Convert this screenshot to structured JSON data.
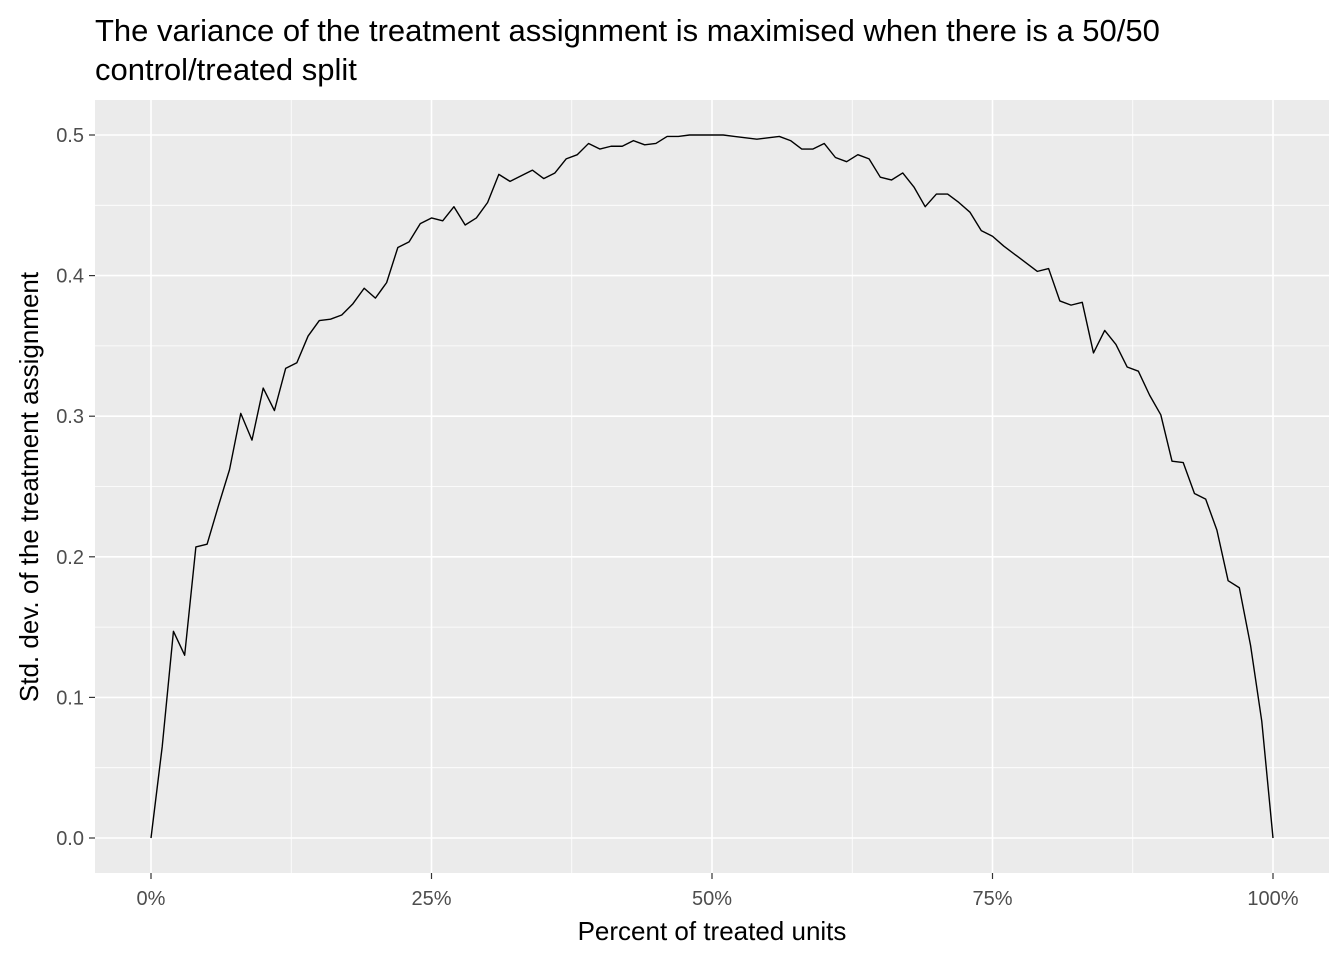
{
  "chart_data": {
    "type": "line",
    "title": "The variance of the treatment assignment is maximised when there is a 50/50",
    "title_line2": "control/treated split",
    "xlabel": "Percent of treated units",
    "ylabel": "Std. dev. of the treatment assignment",
    "xlim": [
      0,
      1
    ],
    "ylim": [
      0,
      0.5
    ],
    "x_ticks": [
      {
        "value": 0,
        "label": "0%"
      },
      {
        "value": 0.25,
        "label": "25%"
      },
      {
        "value": 0.5,
        "label": "50%"
      },
      {
        "value": 0.75,
        "label": "75%"
      },
      {
        "value": 1,
        "label": "100%"
      }
    ],
    "y_ticks": [
      {
        "value": 0.0,
        "label": "0.0"
      },
      {
        "value": 0.1,
        "label": "0.1"
      },
      {
        "value": 0.2,
        "label": "0.2"
      },
      {
        "value": 0.3,
        "label": "0.3"
      },
      {
        "value": 0.4,
        "label": "0.4"
      },
      {
        "value": 0.5,
        "label": "0.5"
      }
    ],
    "grid": true,
    "colors": {
      "panel_background": "#ebebeb",
      "grid_major": "#ffffff",
      "line": "#000000"
    },
    "series": [
      {
        "x": [
          0,
          0.01,
          0.02,
          0.03,
          0.04,
          0.05,
          0.06,
          0.07,
          0.08,
          0.09,
          0.1,
          0.11,
          0.12,
          0.13,
          0.14,
          0.15,
          0.16,
          0.17,
          0.18,
          0.19,
          0.2,
          0.21,
          0.22,
          0.23,
          0.24,
          0.25,
          0.26,
          0.27,
          0.28,
          0.29,
          0.3,
          0.31,
          0.32,
          0.33,
          0.34,
          0.35,
          0.36,
          0.37,
          0.38,
          0.39,
          0.4,
          0.41,
          0.42,
          0.43,
          0.44,
          0.45,
          0.46,
          0.47,
          0.48,
          0.49,
          0.5,
          0.51,
          0.52,
          0.53,
          0.54,
          0.55,
          0.56,
          0.57,
          0.58,
          0.59,
          0.6,
          0.61,
          0.62,
          0.63,
          0.64,
          0.65,
          0.66,
          0.67,
          0.68,
          0.69,
          0.7,
          0.71,
          0.72,
          0.73,
          0.74,
          0.75,
          0.76,
          0.77,
          0.78,
          0.79,
          0.8,
          0.81,
          0.82,
          0.83,
          0.84,
          0.85,
          0.86,
          0.87,
          0.88,
          0.89,
          0.9,
          0.91,
          0.92,
          0.93,
          0.94,
          0.95,
          0.96,
          0.97,
          0.98,
          0.99,
          1.0
        ],
        "y": [
          0,
          0.065,
          0.147,
          0.13,
          0.207,
          0.209,
          0.236,
          0.262,
          0.302,
          0.283,
          0.32,
          0.304,
          0.334,
          0.338,
          0.357,
          0.368,
          0.369,
          0.372,
          0.38,
          0.391,
          0.384,
          0.395,
          0.42,
          0.424,
          0.437,
          0.441,
          0.439,
          0.449,
          0.436,
          0.441,
          0.452,
          0.472,
          0.467,
          0.471,
          0.475,
          0.469,
          0.473,
          0.483,
          0.486,
          0.494,
          0.49,
          0.492,
          0.492,
          0.496,
          0.493,
          0.494,
          0.499,
          0.499,
          0.5,
          0.5,
          0.5,
          0.5,
          0.499,
          0.498,
          0.497,
          0.498,
          0.499,
          0.496,
          0.49,
          0.49,
          0.494,
          0.484,
          0.481,
          0.486,
          0.483,
          0.47,
          0.468,
          0.473,
          0.463,
          0.449,
          0.458,
          0.458,
          0.452,
          0.445,
          0.432,
          0.428,
          0.421,
          0.415,
          0.409,
          0.403,
          0.405,
          0.382,
          0.379,
          0.381,
          0.345,
          0.361,
          0.351,
          0.335,
          0.332,
          0.315,
          0.301,
          0.268,
          0.267,
          0.245,
          0.241,
          0.219,
          0.183,
          0.178,
          0.137,
          0.083,
          0.0
        ]
      }
    ]
  }
}
